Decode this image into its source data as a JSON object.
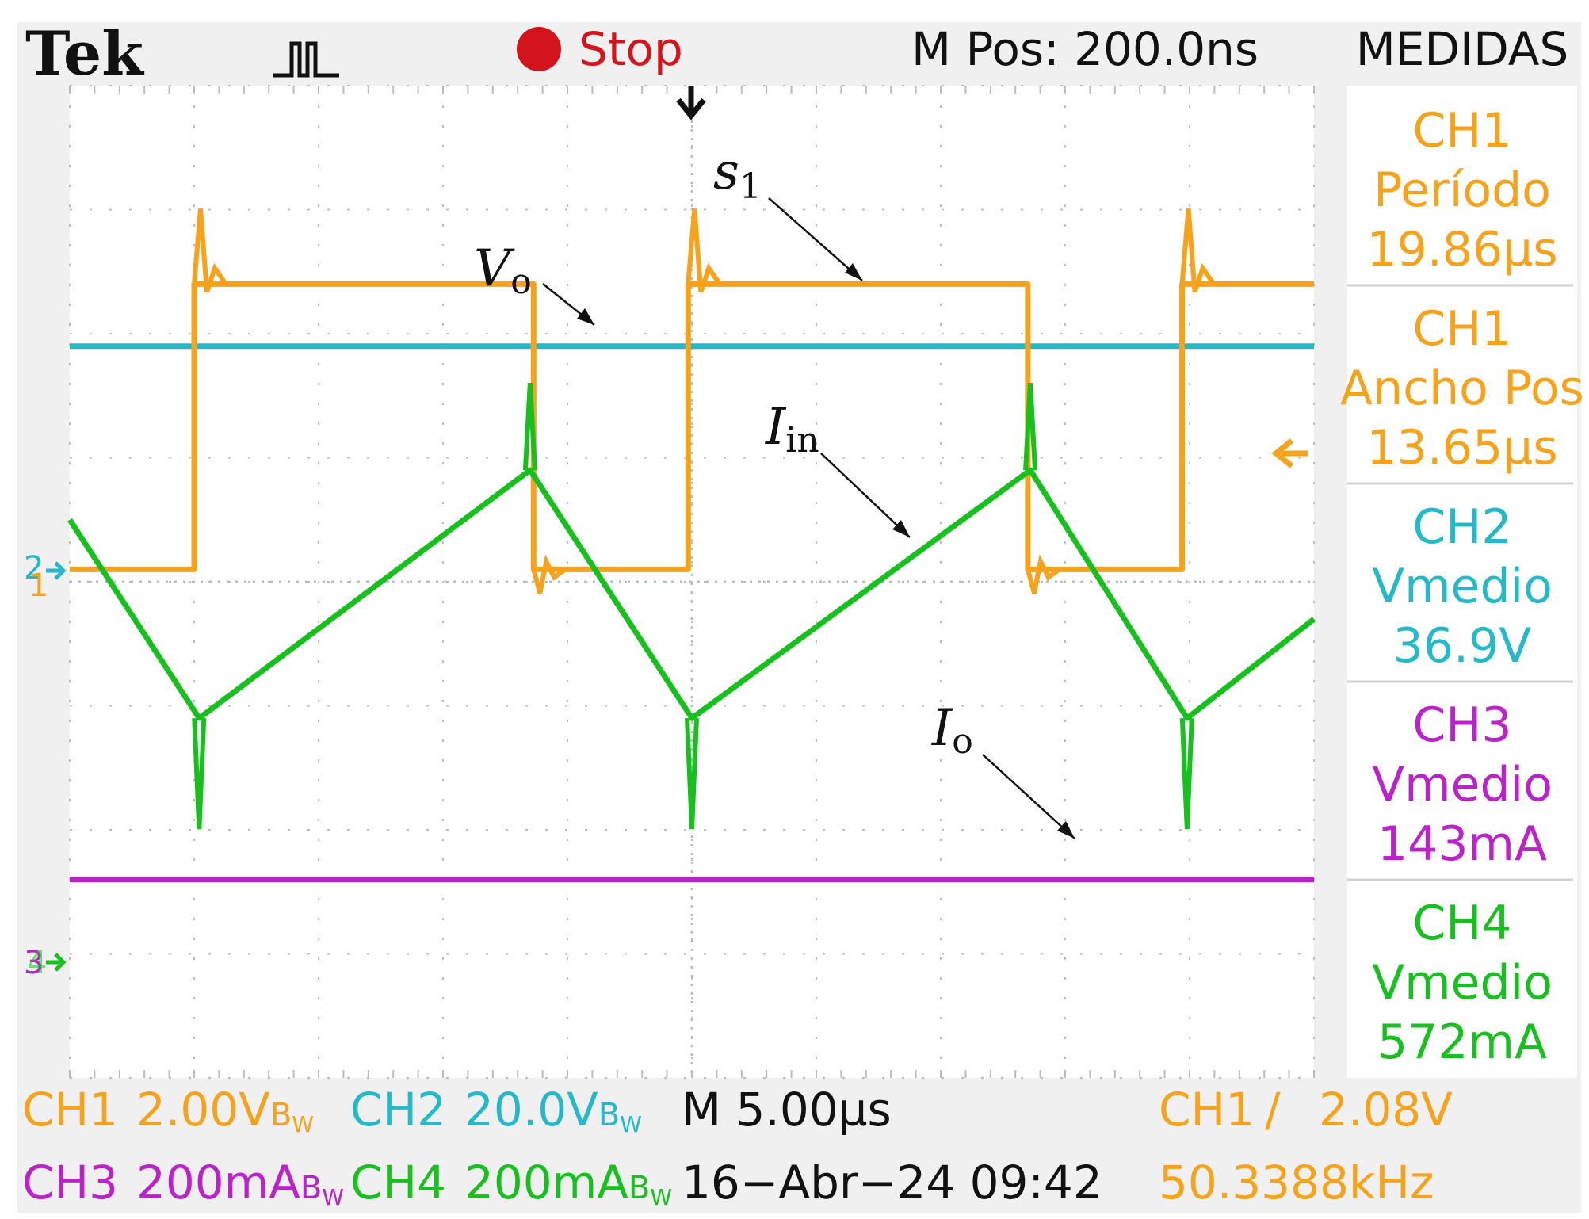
{
  "header": {
    "brand": "Tek",
    "state": "Stop",
    "position": "M Pos: 200.0ns",
    "menu_title": "MEDIDAS"
  },
  "measurements": [
    {
      "channel": "CH1",
      "name": "Período",
      "value": "19.86µs",
      "color": "#f6a21b"
    },
    {
      "channel": "CH1",
      "name": "Ancho Pos",
      "value": "13.65µs",
      "color": "#f6a21b"
    },
    {
      "channel": "CH2",
      "name": "Vmedio",
      "value": "36.9V",
      "color": "#23b9c9"
    },
    {
      "channel": "CH3",
      "name": "Vmedio",
      "value": "143mA",
      "color": "#bb22cc"
    },
    {
      "channel": "CH4",
      "name": "Vmedio",
      "value": "572mA",
      "color": "#16c01d"
    }
  ],
  "footer": {
    "ch1_label": "CH1",
    "ch1_scale": "2.00V",
    "ch2_label": "CH2",
    "ch2_scale": "20.0V",
    "ch3_label": "CH3",
    "ch3_scale": "200mA",
    "ch4_label": "CH4",
    "ch4_scale": "200mA",
    "bw_mark": "B",
    "bw_sub": "W",
    "timebase": "M 5.00µs",
    "datetime": "16−Abr−24 09:42",
    "trigger_channel": "CH1",
    "trigger_slope": "/",
    "trigger_level": "2.08V",
    "frequency": "50.3388kHz"
  },
  "annotations": {
    "s1": {
      "base": "s",
      "sub": "1"
    },
    "vo": {
      "base": "V",
      "sub": "o"
    },
    "iin": {
      "base": "I",
      "sub": "in"
    },
    "io": {
      "base": "I",
      "sub": "o"
    }
  },
  "channel_markers": {
    "ch2": "2",
    "ch1": "1",
    "ch3": "3",
    "ch4": "4"
  },
  "colors": {
    "ch1": "#f6a21b",
    "ch2": "#23b9c9",
    "ch3": "#bb22cc",
    "ch4": "#16c01d",
    "grid": "#bdbdbd",
    "frame": "#f0f0f0",
    "stop_icon": "#d4141c"
  },
  "chart_data": {
    "type": "line",
    "title": "",
    "xlabel": "",
    "ylabel": "",
    "x_divisions": 10,
    "y_divisions": 8,
    "grid": true,
    "series": [
      {
        "name": "s1",
        "channel": "CH1",
        "x_us": [
          0,
          5.0,
          5.0,
          18.64,
          18.64,
          24.85,
          24.85,
          38.5,
          38.5,
          44.7,
          44.7,
          50
        ],
        "y_div": [
          0.1,
          0.1,
          2.4,
          2.4,
          0.1,
          0.1,
          2.4,
          2.4,
          0.1,
          0.1,
          2.4,
          2.4
        ]
      },
      {
        "name": "Vo",
        "channel": "CH2",
        "x_us": [
          0,
          50
        ],
        "y_div": [
          1.9,
          1.9
        ]
      },
      {
        "name": "Iin",
        "channel": "CH4",
        "x_us": [
          0,
          5.2,
          18.5,
          25.0,
          38.6,
          44.9,
          50
        ],
        "y_div": [
          0.5,
          -1.1,
          0.9,
          -1.1,
          0.9,
          -1.1,
          -0.3
        ]
      },
      {
        "name": "Io",
        "channel": "CH3",
        "x_us": [
          0,
          50
        ],
        "y_div": [
          -2.4,
          -2.4
        ]
      }
    ]
  }
}
